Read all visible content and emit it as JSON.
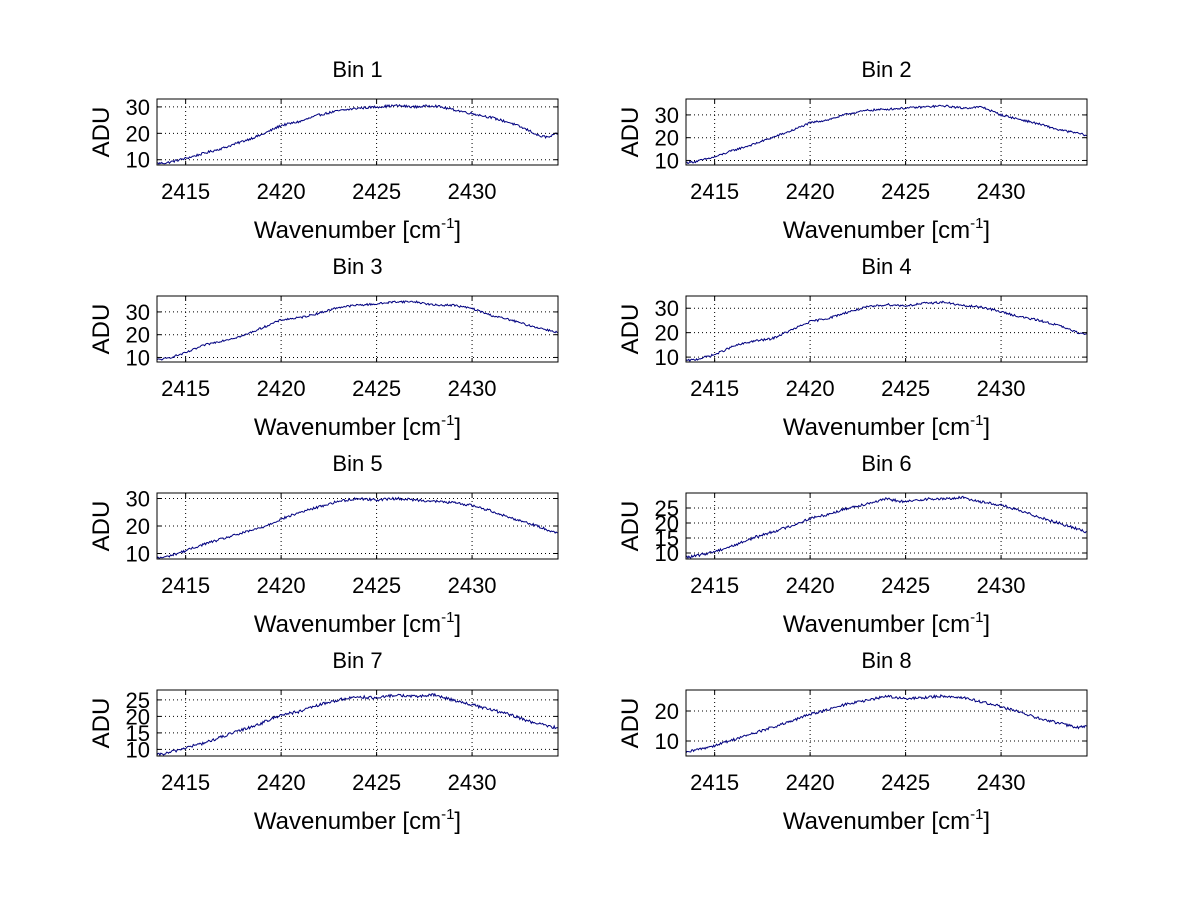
{
  "chart_data": [
    {
      "type": "line",
      "title": "Bin 1",
      "xlabel": "Wavenumber [cm",
      "xlabel_sup": "-1",
      "xlabel_close": "]",
      "ylabel": "ADU",
      "xlim": [
        2413.5,
        2434.5
      ],
      "ylim": [
        8,
        33
      ],
      "xticks": [
        2415,
        2420,
        2425,
        2430
      ],
      "yticks": [
        10,
        20,
        30
      ],
      "grid": true,
      "series": [
        {
          "color": "#000080",
          "x": [
            2413.5,
            2414,
            2415,
            2416,
            2417,
            2418,
            2419,
            2420,
            2421,
            2422,
            2423,
            2424,
            2425,
            2426,
            2427,
            2428,
            2429,
            2430,
            2431,
            2432,
            2433,
            2433.5,
            2434,
            2434.5
          ],
          "y": [
            8.6,
            8.8,
            10.5,
            12.5,
            14.5,
            17,
            19.5,
            23,
            24.5,
            27,
            28.5,
            29.5,
            30,
            30.5,
            30,
            30.5,
            29,
            27.5,
            26,
            24,
            21,
            19,
            18.5,
            20
          ]
        }
      ]
    },
    {
      "type": "line",
      "title": "Bin 2",
      "xlabel": "Wavenumber [cm",
      "xlabel_sup": "-1",
      "xlabel_close": "]",
      "ylabel": "ADU",
      "xlim": [
        2413.5,
        2434.5
      ],
      "ylim": [
        8,
        37
      ],
      "xticks": [
        2415,
        2420,
        2425,
        2430
      ],
      "yticks": [
        10,
        20,
        30
      ],
      "grid": true,
      "series": [
        {
          "color": "#000080",
          "x": [
            2413.5,
            2414,
            2415,
            2416,
            2417,
            2418,
            2419,
            2420,
            2421,
            2422,
            2423,
            2424,
            2425,
            2426,
            2427,
            2428,
            2429,
            2430,
            2431,
            2432,
            2433,
            2434,
            2434.5
          ],
          "y": [
            9,
            9.5,
            11.5,
            14.5,
            17,
            20,
            23,
            26.5,
            28,
            30.5,
            32,
            32.5,
            33,
            33.5,
            34,
            33,
            33.5,
            30,
            28,
            26,
            23.5,
            22,
            21
          ]
        }
      ]
    },
    {
      "type": "line",
      "title": "Bin 3",
      "xlabel": "Wavenumber [cm",
      "xlabel_sup": "-1",
      "xlabel_close": "]",
      "ylabel": "ADU",
      "xlim": [
        2413.5,
        2434.5
      ],
      "ylim": [
        8,
        37
      ],
      "xticks": [
        2415,
        2420,
        2425,
        2430
      ],
      "yticks": [
        10,
        20,
        30
      ],
      "grid": true,
      "series": [
        {
          "color": "#000080",
          "x": [
            2413.5,
            2414,
            2415,
            2416,
            2417,
            2418,
            2419,
            2420,
            2421,
            2422,
            2423,
            2424,
            2425,
            2426,
            2427,
            2428,
            2429,
            2430,
            2431,
            2432,
            2433,
            2434,
            2434.5
          ],
          "y": [
            9,
            9.5,
            12,
            15.5,
            17.5,
            19.5,
            23,
            26.5,
            27.5,
            29.5,
            32,
            33,
            33.5,
            34.5,
            34.5,
            33,
            33,
            31.5,
            28.5,
            26.5,
            24,
            22,
            21
          ]
        }
      ]
    },
    {
      "type": "line",
      "title": "Bin 4",
      "xlabel": "Wavenumber [cm",
      "xlabel_sup": "-1",
      "xlabel_close": "]",
      "ylabel": "ADU",
      "xlim": [
        2413.5,
        2434.5
      ],
      "ylim": [
        8,
        35
      ],
      "xticks": [
        2415,
        2420,
        2425,
        2430
      ],
      "yticks": [
        10,
        20,
        30
      ],
      "grid": true,
      "series": [
        {
          "color": "#000080",
          "x": [
            2413.5,
            2414,
            2415,
            2416,
            2417,
            2418,
            2419,
            2420,
            2421,
            2422,
            2423,
            2424,
            2425,
            2426,
            2427,
            2428,
            2429,
            2430,
            2431,
            2432,
            2433,
            2434,
            2434.5
          ],
          "y": [
            8.5,
            9,
            11,
            14.5,
            16.5,
            17.5,
            21,
            24.5,
            26,
            28.5,
            30.5,
            31.5,
            31,
            32,
            32.5,
            31,
            30.5,
            28.5,
            26.5,
            25,
            23,
            20,
            19.5
          ]
        }
      ]
    },
    {
      "type": "line",
      "title": "Bin 5",
      "xlabel": "Wavenumber [cm",
      "xlabel_sup": "-1",
      "xlabel_close": "]",
      "ylabel": "ADU",
      "xlim": [
        2413.5,
        2434.5
      ],
      "ylim": [
        8,
        32
      ],
      "xticks": [
        2415,
        2420,
        2425,
        2430
      ],
      "yticks": [
        10,
        20,
        30
      ],
      "grid": true,
      "series": [
        {
          "color": "#000080",
          "x": [
            2413.5,
            2414,
            2415,
            2416,
            2417,
            2418,
            2419,
            2420,
            2421,
            2422,
            2423,
            2424,
            2425,
            2426,
            2427,
            2428,
            2429,
            2430,
            2431,
            2432,
            2433,
            2434,
            2434.5
          ],
          "y": [
            8.3,
            8.8,
            11,
            13.5,
            15.5,
            17.5,
            19.5,
            22.5,
            25,
            27,
            29,
            30,
            29.5,
            30,
            29.5,
            29,
            28.5,
            27.5,
            25.5,
            23,
            21,
            18.5,
            17.5
          ]
        }
      ]
    },
    {
      "type": "line",
      "title": "Bin 6",
      "xlabel": "Wavenumber [cm",
      "xlabel_sup": "-1",
      "xlabel_close": "]",
      "ylabel": "ADU",
      "xlim": [
        2413.5,
        2434.5
      ],
      "ylim": [
        8,
        30
      ],
      "xticks": [
        2415,
        2420,
        2425,
        2430
      ],
      "yticks": [
        10,
        15,
        20,
        25
      ],
      "grid": true,
      "series": [
        {
          "color": "#000080",
          "x": [
            2413.5,
            2414,
            2415,
            2416,
            2417,
            2418,
            2419,
            2420,
            2421,
            2422,
            2423,
            2424,
            2425,
            2426,
            2427,
            2428,
            2429,
            2430,
            2431,
            2432,
            2433,
            2434,
            2434.5
          ],
          "y": [
            8.5,
            9,
            10.5,
            12.5,
            15,
            17,
            19,
            21.5,
            23,
            25,
            26.5,
            28,
            27,
            28,
            28,
            28.5,
            27,
            26,
            24,
            22,
            20,
            18,
            17
          ]
        }
      ]
    },
    {
      "type": "line",
      "title": "Bin 7",
      "xlabel": "Wavenumber [cm",
      "xlabel_sup": "-1",
      "xlabel_close": "]",
      "ylabel": "ADU",
      "xlim": [
        2413.5,
        2434.5
      ],
      "ylim": [
        8,
        28
      ],
      "xticks": [
        2415,
        2420,
        2425,
        2430
      ],
      "yticks": [
        10,
        15,
        20,
        25
      ],
      "grid": true,
      "series": [
        {
          "color": "#000080",
          "x": [
            2413.5,
            2414,
            2415,
            2416,
            2417,
            2418,
            2419,
            2420,
            2421,
            2422,
            2423,
            2424,
            2425,
            2426,
            2427,
            2428,
            2429,
            2430,
            2431,
            2432,
            2433,
            2434,
            2434.5
          ],
          "y": [
            8.3,
            8.8,
            10.5,
            12,
            14,
            16,
            18,
            20.5,
            21.5,
            23.5,
            25,
            26,
            25.5,
            26.5,
            26,
            26.5,
            25,
            23.5,
            22,
            20.5,
            18.5,
            17,
            16.5
          ]
        }
      ]
    },
    {
      "type": "line",
      "title": "Bin 8",
      "xlabel": "Wavenumber [cm",
      "xlabel_sup": "-1",
      "xlabel_close": "]",
      "ylabel": "ADU",
      "xlim": [
        2413.5,
        2434.5
      ],
      "ylim": [
        5,
        27
      ],
      "xticks": [
        2415,
        2420,
        2425,
        2430
      ],
      "yticks": [
        10,
        20
      ],
      "grid": true,
      "series": [
        {
          "color": "#000080",
          "x": [
            2413.5,
            2414,
            2415,
            2416,
            2417,
            2418,
            2419,
            2420,
            2421,
            2422,
            2423,
            2424,
            2425,
            2426,
            2427,
            2428,
            2429,
            2430,
            2431,
            2432,
            2433,
            2434,
            2434.5
          ],
          "y": [
            6,
            7,
            8.5,
            10.5,
            12.5,
            14.5,
            16.5,
            19,
            20.5,
            22.5,
            23.5,
            25,
            24,
            24.5,
            25,
            24.5,
            23,
            21.5,
            19.5,
            17.5,
            16,
            14.5,
            15
          ]
        }
      ]
    }
  ]
}
